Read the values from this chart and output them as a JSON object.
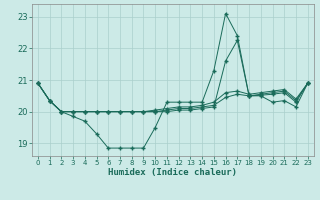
{
  "xlabel": "Humidex (Indice chaleur)",
  "ylabel": "",
  "xlim": [
    -0.5,
    23.5
  ],
  "ylim": [
    18.6,
    23.4
  ],
  "yticks": [
    19,
    20,
    21,
    22,
    23
  ],
  "xticks": [
    0,
    1,
    2,
    3,
    4,
    5,
    6,
    7,
    8,
    9,
    10,
    11,
    12,
    13,
    14,
    15,
    16,
    17,
    18,
    19,
    20,
    21,
    22,
    23
  ],
  "background_color": "#cceae7",
  "grid_color": "#aacfcc",
  "line_color": "#1a6b5a",
  "series": [
    [
      20.9,
      20.35,
      20.0,
      19.85,
      19.7,
      19.3,
      18.85,
      18.85,
      18.85,
      18.85,
      19.5,
      20.3,
      20.3,
      20.3,
      20.3,
      21.3,
      23.1,
      22.4,
      20.5,
      20.5,
      20.3,
      20.35,
      20.15,
      20.9
    ],
    [
      20.9,
      20.35,
      20.0,
      20.0,
      20.0,
      20.0,
      20.0,
      20.0,
      20.0,
      20.0,
      20.05,
      20.1,
      20.15,
      20.15,
      20.2,
      20.3,
      20.6,
      20.65,
      20.55,
      20.6,
      20.65,
      20.7,
      20.4,
      20.9
    ],
    [
      20.9,
      20.35,
      20.0,
      20.0,
      20.0,
      20.0,
      20.0,
      20.0,
      20.0,
      20.0,
      20.0,
      20.05,
      20.1,
      20.1,
      20.15,
      20.2,
      20.45,
      20.55,
      20.5,
      20.55,
      20.6,
      20.65,
      20.35,
      20.9
    ],
    [
      20.9,
      20.35,
      20.0,
      20.0,
      20.0,
      20.0,
      20.0,
      20.0,
      20.0,
      20.0,
      20.0,
      20.0,
      20.05,
      20.05,
      20.1,
      20.15,
      21.6,
      22.25,
      20.5,
      20.52,
      20.55,
      20.6,
      20.3,
      20.9
    ]
  ]
}
